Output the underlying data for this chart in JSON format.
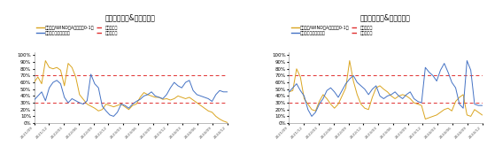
{
  "title1": "行业超额走势&市场反应度",
  "title2": "行业超额走势&市场反应度",
  "legend1_line1": "医疗器械/WIND全A（映射到0-1）",
  "legend1_line2": "市场反应度：医疗器械",
  "legend1_ref1": "高点参照线",
  "legend1_ref2": "低点参照线",
  "legend2_line1": "国防军工/WIND全A（映射到0-1）",
  "legend2_line2": "市场反应度：国防军工",
  "legend2_ref1": "高点参照线",
  "legend2_ref2": "低点参照线",
  "color_gold": "#DAA520",
  "color_blue": "#4472C4",
  "color_red_dashed": "#E03030",
  "high_ref": 0.7,
  "low_ref": 0.3,
  "ylim": [
    0.0,
    1.05
  ],
  "yticks": [
    0.0,
    0.1,
    0.2,
    0.3,
    0.4,
    0.5,
    0.6,
    0.7,
    0.8,
    0.9,
    1.0
  ],
  "xtick_labels": [
    "2021/09",
    "2021/12",
    "2022/03",
    "2022/06",
    "2022/09",
    "2022/12",
    "2023/03",
    "2023/06",
    "2023/09",
    "2023/12",
    "2024/03",
    "2024/06",
    "2024/09",
    "2024/12"
  ],
  "chart1_gold": [
    0.6,
    0.68,
    0.58,
    0.92,
    0.82,
    0.8,
    0.82,
    0.78,
    0.55,
    0.88,
    0.82,
    0.68,
    0.42,
    0.35,
    0.28,
    0.25,
    0.22,
    0.18,
    0.2,
    0.28,
    0.26,
    0.24,
    0.26,
    0.28,
    0.24,
    0.2,
    0.26,
    0.28,
    0.38,
    0.45,
    0.42,
    0.4,
    0.38,
    0.38,
    0.35,
    0.36,
    0.34,
    0.36,
    0.4,
    0.38,
    0.36,
    0.38,
    0.34,
    0.3,
    0.26,
    0.22,
    0.18,
    0.16,
    0.1,
    0.06,
    0.03,
    0.01
  ],
  "chart1_blue": [
    0.34,
    0.4,
    0.46,
    0.33,
    0.52,
    0.6,
    0.63,
    0.58,
    0.38,
    0.3,
    0.36,
    0.33,
    0.3,
    0.28,
    0.33,
    0.72,
    0.58,
    0.52,
    0.25,
    0.18,
    0.12,
    0.1,
    0.16,
    0.28,
    0.26,
    0.22,
    0.28,
    0.32,
    0.35,
    0.4,
    0.42,
    0.46,
    0.4,
    0.38,
    0.36,
    0.42,
    0.52,
    0.6,
    0.55,
    0.52,
    0.6,
    0.63,
    0.48,
    0.42,
    0.4,
    0.38,
    0.36,
    0.32,
    0.42,
    0.48,
    0.46,
    0.46
  ],
  "chart2_gold": [
    0.46,
    0.48,
    0.8,
    0.68,
    0.36,
    0.28,
    0.2,
    0.18,
    0.32,
    0.42,
    0.36,
    0.28,
    0.22,
    0.28,
    0.4,
    0.52,
    0.92,
    0.62,
    0.42,
    0.28,
    0.22,
    0.2,
    0.38,
    0.52,
    0.55,
    0.5,
    0.46,
    0.4,
    0.36,
    0.4,
    0.42,
    0.4,
    0.36,
    0.3,
    0.28,
    0.26,
    0.06,
    0.08,
    0.1,
    0.12,
    0.16,
    0.2,
    0.22,
    0.18,
    0.32,
    0.38,
    0.42,
    0.12,
    0.1,
    0.2,
    0.16,
    0.12
  ],
  "chart2_blue": [
    0.46,
    0.52,
    0.58,
    0.48,
    0.4,
    0.2,
    0.1,
    0.16,
    0.28,
    0.36,
    0.48,
    0.52,
    0.46,
    0.38,
    0.48,
    0.58,
    0.65,
    0.7,
    0.6,
    0.55,
    0.5,
    0.42,
    0.5,
    0.55,
    0.4,
    0.36,
    0.4,
    0.42,
    0.46,
    0.4,
    0.36,
    0.42,
    0.46,
    0.36,
    0.32,
    0.3,
    0.82,
    0.75,
    0.7,
    0.62,
    0.78,
    0.88,
    0.75,
    0.6,
    0.52,
    0.28,
    0.22,
    0.92,
    0.78,
    0.28,
    0.26,
    0.26
  ]
}
